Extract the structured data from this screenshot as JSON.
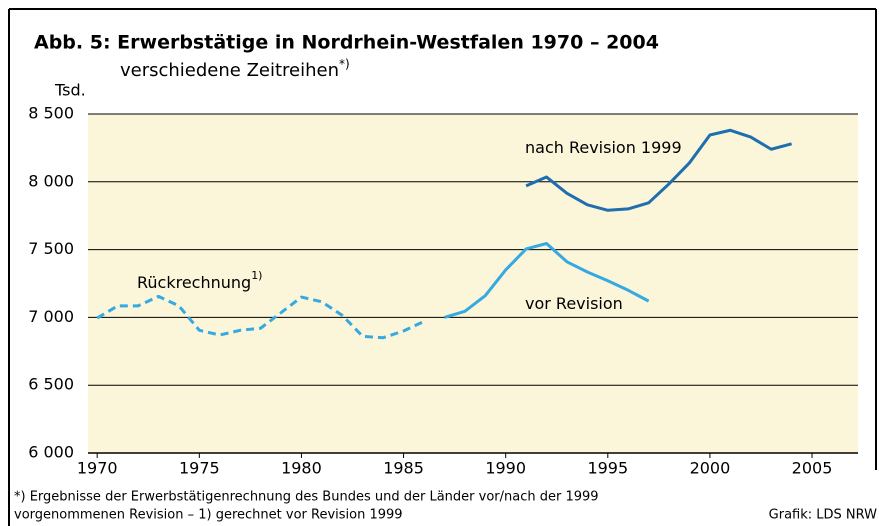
{
  "chart_data": {
    "type": "line",
    "title": "Abb. 5: Erwerbstätige in Nordrhein-Westfalen 1970 – 2004",
    "subtitle": "verschiedene Zeitreihen",
    "subtitle_note": "*)",
    "y_label": "Tsd.",
    "x": [
      1970,
      1971,
      1972,
      1973,
      1974,
      1975,
      1976,
      1977,
      1978,
      1979,
      1980,
      1981,
      1982,
      1983,
      1984,
      1985,
      1986,
      1987,
      1988,
      1989,
      1990,
      1991,
      1992,
      1993,
      1994,
      1995,
      1996,
      1997,
      1998,
      1999,
      2000,
      2001,
      2002,
      2003,
      2004
    ],
    "series": [
      {
        "name": "Rückrechnung",
        "name_note": "1)",
        "color": "#35a9e1",
        "line_style": "dashed",
        "values": [
          6995,
          7085,
          7085,
          7155,
          7085,
          6905,
          6870,
          6905,
          6920,
          7035,
          7150,
          7115,
          7015,
          6860,
          6850,
          6900,
          6970,
          null,
          null,
          null,
          null,
          null,
          null,
          null,
          null,
          null,
          null,
          null,
          null,
          null,
          null,
          null,
          null,
          null,
          null
        ]
      },
      {
        "name": "vor Revision",
        "color": "#35a9e1",
        "line_style": "solid",
        "values": [
          null,
          null,
          null,
          null,
          null,
          null,
          null,
          null,
          null,
          null,
          null,
          null,
          null,
          null,
          null,
          null,
          null,
          7000,
          7045,
          7160,
          7350,
          7505,
          7545,
          7410,
          7335,
          7270,
          7200,
          7120,
          null,
          null,
          null,
          null,
          null,
          null,
          null
        ]
      },
      {
        "name": "nach Revision 1999",
        "color": "#1f6eb0",
        "line_style": "solid",
        "values": [
          null,
          null,
          null,
          null,
          null,
          null,
          null,
          null,
          null,
          null,
          null,
          null,
          null,
          null,
          null,
          null,
          null,
          null,
          null,
          null,
          null,
          7970,
          8035,
          7915,
          7830,
          7790,
          7800,
          7845,
          7985,
          8140,
          8345,
          8380,
          8330,
          8240,
          8280
        ]
      }
    ],
    "xlim": [
      1969.55,
      2007.25
    ],
    "xticks": [
      1970,
      1975,
      1980,
      1985,
      1990,
      1995,
      2000,
      2005
    ],
    "ylim": [
      6000,
      8500
    ],
    "yticks": [
      {
        "value": 6000,
        "label": "6 000"
      },
      {
        "value": 6500,
        "label": "6 500"
      },
      {
        "value": 7000,
        "label": "7 000"
      },
      {
        "value": 7500,
        "label": "7 500"
      },
      {
        "value": 8000,
        "label": "8 000"
      },
      {
        "value": 8500,
        "label": "8 500"
      }
    ],
    "grid": true,
    "footnotes": [
      "*)  Ergebnisse der Erwerbstätigenrechnung des Bundes und der Länder vor/nach der 1999",
      "vorgenommenen Revision – 1) gerechnet vor Revision 1999"
    ],
    "source": "Grafik: LDS NRW"
  }
}
